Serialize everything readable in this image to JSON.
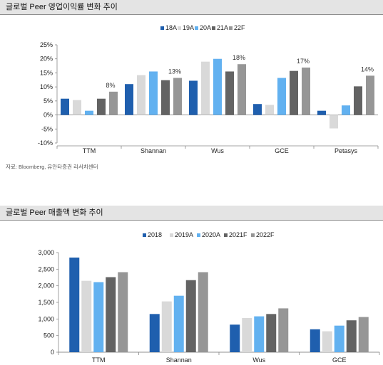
{
  "section1": {
    "title": "글로벌 Peer 영업이익률 변화 추이",
    "source": "자료: Bloomberg, 유안타증권 리서치센터"
  },
  "section2": {
    "title": "글로벌 Peer 매출액 변화 추이"
  },
  "colors": [
    "#1f5fae",
    "#d9d9d9",
    "#62b1f0",
    "#636363",
    "#969696"
  ],
  "chart_data": [
    {
      "type": "bar",
      "categories": [
        "TTM",
        "Shannan",
        "Wus",
        "GCE",
        "Petasys"
      ],
      "series": [
        {
          "name": "18A",
          "values": [
            5.8,
            11.0,
            12.2,
            3.9,
            1.5
          ]
        },
        {
          "name": "19A",
          "values": [
            5.3,
            14.2,
            19.0,
            3.6,
            -4.8
          ]
        },
        {
          "name": "20A",
          "values": [
            1.5,
            15.5,
            20.0,
            13.2,
            3.4
          ]
        },
        {
          "name": "21A",
          "values": [
            5.8,
            12.4,
            15.5,
            15.7,
            10.2
          ]
        },
        {
          "name": "22F",
          "values": [
            8.3,
            13.2,
            18.1,
            16.9,
            14.0
          ]
        }
      ],
      "data_labels": [
        "8%",
        "13%",
        "18%",
        "17%",
        "14%"
      ],
      "yticks": [
        "25%",
        "20%",
        "15%",
        "10%",
        "5%",
        "0%",
        "-5%",
        "-10%"
      ],
      "ylim": [
        -10,
        25
      ],
      "legend": "top-center",
      "grid": false
    },
    {
      "type": "bar",
      "categories": [
        "TTM",
        "Shannan",
        "Wus",
        "GCE"
      ],
      "series": [
        {
          "name": "2018",
          "values": [
            2850,
            1150,
            830,
            690
          ]
        },
        {
          "name": "2019A",
          "values": [
            2150,
            1530,
            1030,
            630
          ]
        },
        {
          "name": "2020A",
          "values": [
            2110,
            1700,
            1080,
            800
          ]
        },
        {
          "name": "2021F",
          "values": [
            2260,
            2170,
            1150,
            960
          ]
        },
        {
          "name": "2022F",
          "values": [
            2410,
            2410,
            1320,
            1060
          ]
        }
      ],
      "yticks": [
        "3,000",
        "2,500",
        "2,000",
        "1,500",
        "1,000",
        "500",
        "0"
      ],
      "ylim": [
        0,
        3000
      ],
      "legend": "top-center",
      "grid": false
    }
  ]
}
